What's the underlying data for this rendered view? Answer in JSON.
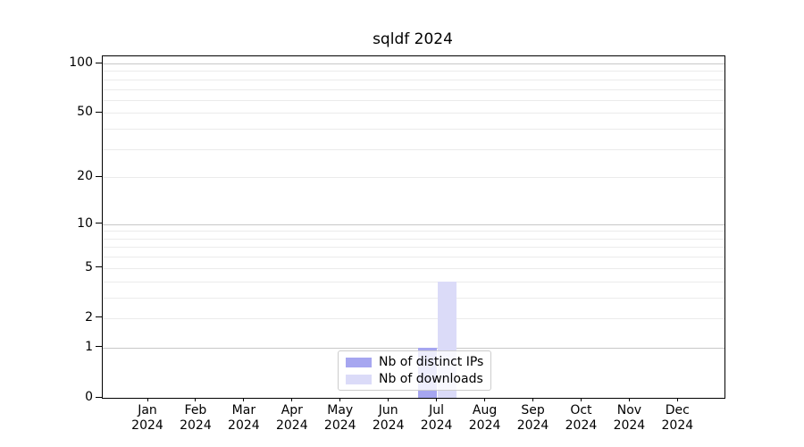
{
  "chart_data": {
    "type": "bar",
    "title": "sqldf 2024",
    "categories": [
      "Jan 2024",
      "Feb 2024",
      "Mar 2024",
      "Apr 2024",
      "May 2024",
      "Jun 2024",
      "Jul 2024",
      "Aug 2024",
      "Sep 2024",
      "Oct 2024",
      "Nov 2024",
      "Dec 2024"
    ],
    "series": [
      {
        "name": "Nb of distinct IPs",
        "color": "#a6a6f0",
        "values": [
          0,
          0,
          0,
          0,
          0,
          0,
          1,
          0,
          0,
          0,
          0,
          0
        ]
      },
      {
        "name": "Nb of downloads",
        "color": "#dbdbf8",
        "values": [
          0,
          0,
          0,
          0,
          0,
          0,
          4,
          0,
          0,
          0,
          0,
          0
        ]
      }
    ],
    "xlabel": "",
    "ylabel": "",
    "y_axis": {
      "scale": "log1p",
      "ticks": [
        0,
        1,
        2,
        5,
        10,
        20,
        50,
        100
      ],
      "major_gridlines": [
        1,
        10,
        100
      ],
      "minor_gridlines": [
        2,
        3,
        4,
        5,
        6,
        7,
        8,
        9,
        20,
        30,
        40,
        50,
        60,
        70,
        80,
        90
      ],
      "ylim": [
        0,
        110
      ]
    },
    "legend": {
      "position": "bottom-center",
      "items": [
        "Nb of distinct IPs",
        "Nb of downloads"
      ]
    },
    "grid": true
  },
  "colors": {
    "major_grid": "#c8c8c8",
    "minor_grid": "#ebebeb",
    "axis": "#000000",
    "legend_border": "#cccccc"
  }
}
